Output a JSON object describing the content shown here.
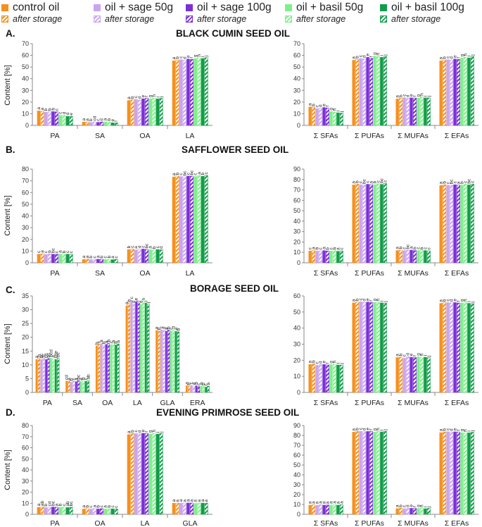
{
  "legend": {
    "items": [
      {
        "label": "control oil",
        "color": "#f5901e"
      },
      {
        "label": "oil + sage 50g",
        "color": "#c9a5f0"
      },
      {
        "label": "oil + sage 100g",
        "color": "#7b2fd6"
      },
      {
        "label": "oil + basil 50g",
        "color": "#7ef08a"
      },
      {
        "label": "oil + basil 100g",
        "color": "#129c4a"
      }
    ],
    "after_storage_label": "after storage"
  },
  "panels": [
    {
      "letter": "A.",
      "title": "BLACK CUMIN SEED OIL"
    },
    {
      "letter": "B.",
      "title": "SAFFLOWER SEED OIL"
    },
    {
      "letter": "C.",
      "title": "BORAGE SEED OIL"
    },
    {
      "letter": "D.",
      "title": "EVENING PRIMROSE SEED OIL"
    }
  ],
  "chart_data": [
    {
      "type": "bar",
      "panel": "A.",
      "title": "BLACK CUMIN SEED OIL",
      "ylabel": "Content [%]",
      "ylim": [
        0,
        70
      ],
      "yticks": [
        0,
        10,
        20,
        30,
        40,
        50,
        60,
        70
      ],
      "categories": [
        "PA",
        "SA",
        "OA",
        "LA"
      ],
      "values": [
        [
          12.6,
          12.1,
          11.5,
          11.8,
          12.0,
          11.6,
          8.8,
          8.5,
          8.0,
          7.7
        ],
        [
          3.0,
          2.9,
          2.7,
          3.0,
          2.8,
          2.9,
          3.2,
          3.0,
          2.4,
          2.2
        ],
        [
          21.5,
          22.0,
          22.5,
          21.8,
          23.0,
          23.3,
          23.0,
          23.5,
          22.9,
          23.2
        ],
        [
          55.5,
          56.0,
          56.5,
          55.8,
          57.0,
          56.5,
          57.5,
          58.0,
          57.5,
          58.0
        ]
      ],
      "letters": [
        [
          "a",
          "a",
          "b",
          "b",
          "b",
          "c",
          "c",
          "d",
          "d",
          "e"
        ],
        [
          "a",
          "a",
          "b",
          "cd",
          "c",
          "d",
          "a",
          "b",
          "e",
          "f"
        ],
        [
          "a",
          "b",
          "c",
          "d",
          "e",
          "f",
          "g",
          "h",
          "i",
          "j"
        ],
        [
          "a",
          "b",
          "c",
          "d",
          "e",
          "f",
          "g",
          "h",
          "i",
          "j"
        ]
      ]
    },
    {
      "type": "bar",
      "panel": "A.",
      "ylim": [
        0,
        70
      ],
      "yticks": [
        0,
        10,
        20,
        30,
        40,
        50,
        60,
        70
      ],
      "categories": [
        "Σ SFAs",
        "Σ PUFAs",
        "Σ MUFAs",
        "Σ EFAs"
      ],
      "values": [
        [
          16.0,
          15.5,
          14.5,
          14.8,
          15.5,
          15.0,
          12.0,
          11.5,
          11.0,
          10.5
        ],
        [
          56.0,
          56.5,
          57.5,
          57.0,
          58.5,
          57.5,
          59.5,
          59.0,
          58.5,
          59.0
        ],
        [
          22.8,
          23.2,
          24.0,
          23.0,
          23.8,
          23.5,
          23.5,
          24.5,
          23.8,
          23.6
        ],
        [
          55.5,
          56.0,
          56.5,
          56.0,
          57.0,
          56.5,
          58.0,
          58.5,
          58.0,
          59.0
        ]
      ],
      "letters": [
        [
          "a",
          "b",
          "c",
          "d",
          "e",
          "f",
          "g",
          "h",
          "i",
          "j"
        ],
        [
          "a",
          "b",
          "c",
          "d",
          "e",
          "f",
          "g",
          "h",
          "i",
          "j"
        ],
        [
          "a",
          "b",
          "c",
          "d",
          "e",
          "f",
          "g",
          "h",
          "i",
          "j"
        ],
        [
          "a",
          "b",
          "c",
          "d",
          "e",
          "f",
          "g",
          "h",
          "i",
          "j"
        ]
      ]
    },
    {
      "type": "bar",
      "panel": "B.",
      "title": "SAFFLOWER SEED OIL",
      "ylabel": "Content [%]",
      "ylim": [
        0,
        80
      ],
      "yticks": [
        0,
        10,
        20,
        30,
        40,
        50,
        60,
        70,
        80
      ],
      "categories": [
        "PA",
        "SA",
        "OA",
        "LA"
      ],
      "values": [
        [
          7.5,
          7.6,
          7.4,
          7.7,
          7.5,
          7.3,
          7.6,
          7.4,
          7.5,
          7.2
        ],
        [
          3.0,
          3.1,
          2.9,
          3.0,
          3.2,
          2.9,
          3.0,
          3.1,
          2.8,
          3.0
        ],
        [
          11.5,
          11.8,
          11.2,
          11.6,
          11.9,
          11.4,
          11.3,
          11.0,
          11.5,
          11.1
        ],
        [
          73.5,
          74.0,
          73.8,
          73.5,
          74.2,
          74.0,
          73.8,
          74.5,
          74.0,
          74.6
        ]
      ],
      "letters": [
        [
          "c",
          "a",
          "c",
          "b",
          "bc",
          "c",
          "a",
          "b",
          "c",
          "c"
        ],
        [
          "a",
          "a",
          "b",
          "c",
          "a",
          "b",
          "c",
          "b",
          "a",
          "c"
        ],
        [
          "b",
          "c",
          "a",
          "d",
          "c",
          "bc",
          "a",
          "b",
          "c",
          "d"
        ],
        [
          "a",
          "b",
          "c",
          "bc",
          "c",
          "bc",
          "c",
          "a",
          "b",
          "c"
        ]
      ]
    },
    {
      "type": "bar",
      "panel": "B.",
      "ylim": [
        0,
        90
      ],
      "yticks": [
        0,
        10,
        20,
        30,
        40,
        50,
        60,
        70,
        80,
        90
      ],
      "categories": [
        "Σ SFAs",
        "Σ PUFAs",
        "Σ MUFAs",
        "Σ EFAs"
      ],
      "values": [
        [
          11.5,
          11.8,
          11.6,
          11.4,
          11.9,
          11.3,
          11.5,
          11.7,
          11.2,
          11.4
        ],
        [
          75.0,
          75.5,
          75.2,
          74.8,
          75.6,
          75.0,
          75.3,
          76.0,
          75.5,
          76.2
        ],
        [
          12.0,
          12.3,
          11.9,
          12.1,
          12.4,
          11.8,
          12.0,
          11.7,
          11.9,
          11.5
        ],
        [
          74.5,
          75.0,
          74.8,
          74.5,
          75.2,
          74.6,
          74.9,
          75.5,
          75.0,
          75.6
        ]
      ],
      "letters": [
        [
          "c",
          "a",
          "b",
          "c",
          "a",
          "b",
          "c",
          "b",
          "a",
          "c"
        ],
        [
          "a",
          "b",
          "c",
          "bc",
          "c",
          "a",
          "b",
          "c",
          "bc",
          "c"
        ],
        [
          "a",
          "b",
          "c",
          "bc",
          "a",
          "b",
          "c",
          "b",
          "c",
          "c"
        ],
        [
          "a",
          "b",
          "c",
          "bc",
          "c",
          "a",
          "b",
          "c",
          "bc",
          "c"
        ]
      ]
    },
    {
      "type": "bar",
      "panel": "C.",
      "title": "BORAGE SEED OIL",
      "ylabel": "Content [%]",
      "ylim": [
        0,
        35
      ],
      "yticks": [
        0,
        5,
        10,
        15,
        20,
        25,
        30,
        35
      ],
      "categories": [
        "PA",
        "SA",
        "OA",
        "LA",
        "GLA",
        "ERA"
      ],
      "values": [
        [
          12.0,
          12.5,
          12.0,
          12.4,
          12.0,
          12.3,
          12.5,
          12.2,
          12.0,
          12.4
        ],
        [
          4.2,
          4.0,
          3.8,
          4.1,
          4.0,
          4.3,
          4.0,
          4.2,
          4.1,
          4.3
        ],
        [
          17.0,
          17.5,
          17.8,
          17.2,
          17.5,
          17.9,
          17.4,
          17.7,
          17.3,
          17.6
        ],
        [
          31.5,
          32.5,
          33.5,
          32.0,
          33.0,
          32.5,
          32.0,
          33.0,
          32.5,
          32.0
        ],
        [
          22.5,
          22.2,
          22.8,
          22.5,
          22.3,
          22.6,
          22.4,
          22.7,
          22.2,
          22.0
        ],
        [
          2.5,
          2.2,
          2.6,
          2.3,
          2.5,
          2.1,
          2.4,
          2.2,
          2.0,
          2.3
        ]
      ],
      "letters": [
        [
          "a",
          "b",
          "bc",
          "b",
          "cd",
          "bc",
          "bcd",
          "a",
          "cde",
          "bc"
        ],
        [
          "cd",
          "a",
          "b",
          "c",
          "a",
          "bc",
          "a",
          "b",
          "c",
          "ab"
        ],
        [
          "b",
          "c",
          "a",
          "b",
          "a",
          "b",
          "c",
          "a",
          "b",
          "a"
        ],
        [
          "a",
          "b",
          "c",
          "d",
          "e",
          "f",
          "g",
          "h",
          "i",
          "j"
        ],
        [
          "a",
          "b",
          "c",
          "d",
          "a",
          "b",
          "c",
          "d",
          "a",
          "b"
        ],
        [
          "a",
          "b",
          "c",
          "a",
          "b",
          "c",
          "a",
          "b",
          "c",
          "a"
        ]
      ]
    },
    {
      "type": "bar",
      "panel": "C.",
      "ylim": [
        0,
        60
      ],
      "yticks": [
        0,
        10,
        20,
        30,
        40,
        50,
        60
      ],
      "categories": [
        "Σ SFAs",
        "Σ PUFAs",
        "Σ MUFAs",
        "Σ EFAs"
      ],
      "values": [
        [
          17.5,
          17.8,
          17.0,
          17.3,
          17.5,
          17.1,
          17.4,
          17.6,
          17.2,
          17.0
        ],
        [
          55.8,
          56.2,
          56.5,
          56.0,
          56.3,
          55.9,
          56.1,
          56.0,
          55.8,
          55.5
        ],
        [
          21.8,
          22.0,
          21.5,
          22.3,
          22.0,
          21.7,
          22.2,
          21.9,
          22.0,
          21.6
        ],
        [
          55.5,
          55.8,
          56.0,
          55.7,
          56.0,
          55.6,
          55.8,
          55.9,
          55.5,
          55.2
        ]
      ],
      "letters": [
        [
          "a",
          "b",
          "c",
          "d",
          "e",
          "f",
          "g",
          "h",
          "i",
          "j"
        ],
        [
          "a",
          "b",
          "c",
          "d",
          "e",
          "f",
          "g",
          "h",
          "i",
          "j"
        ],
        [
          "a",
          "b",
          "c",
          "d",
          "e",
          "f",
          "g",
          "h",
          "i",
          "j"
        ],
        [
          "a",
          "b",
          "c",
          "d",
          "e",
          "f",
          "g",
          "h",
          "i",
          "j"
        ]
      ]
    },
    {
      "type": "bar",
      "panel": "D.",
      "title": "EVENING PRIMROSE SEED OIL",
      "ylabel": "Content [%]",
      "ylim": [
        0,
        80
      ],
      "yticks": [
        0,
        10,
        20,
        30,
        40,
        50,
        60,
        70,
        80
      ],
      "categories": [
        "PA",
        "OA",
        "LA",
        "GLA"
      ],
      "values": [
        [
          6.5,
          6.6,
          6.3,
          6.5,
          6.7,
          6.4,
          6.5,
          6.6,
          6.3,
          6.4
        ],
        [
          5.0,
          5.1,
          4.9,
          5.2,
          5.0,
          5.1,
          4.9,
          5.0,
          5.1,
          4.8
        ],
        [
          72.0,
          72.8,
          73.0,
          72.5,
          73.2,
          72.8,
          72.6,
          73.0,
          72.5,
          72.8
        ],
        [
          10.2,
          10.0,
          10.3,
          10.1,
          10.4,
          10.2,
          10.0,
          10.1,
          10.3,
          10.0
        ]
      ],
      "letters": [
        [
          "a",
          "ab",
          "b",
          "cd",
          "bc",
          "a",
          "b",
          "c",
          "ab",
          "bc"
        ],
        [
          "a",
          "b",
          "c",
          "a",
          "b",
          "c",
          "a",
          "b",
          "c",
          "c"
        ],
        [
          "a",
          "b",
          "c",
          "d",
          "e",
          "f",
          "g",
          "h",
          "i",
          "j"
        ],
        [
          "a",
          "a",
          "a",
          "a",
          "a",
          "a",
          "a",
          "a",
          "a",
          "a"
        ]
      ]
    },
    {
      "type": "bar",
      "panel": "D.",
      "ylim": [
        0,
        90
      ],
      "yticks": [
        0,
        10,
        20,
        30,
        40,
        50,
        60,
        70,
        80,
        90
      ],
      "categories": [
        "Σ SFAs",
        "Σ PUFAs",
        "Σ MUFAs",
        "Σ EFAs"
      ],
      "values": [
        [
          9.5,
          9.6,
          9.3,
          9.7,
          9.5,
          9.4,
          9.6,
          9.8,
          9.5,
          9.7
        ],
        [
          83.5,
          84.0,
          84.5,
          83.8,
          84.2,
          84.0,
          83.6,
          84.0,
          83.8,
          84.2
        ],
        [
          6.0,
          6.2,
          5.9,
          6.1,
          6.3,
          6.0,
          6.2,
          6.1,
          5.9,
          6.0
        ],
        [
          83.0,
          83.5,
          84.0,
          83.2,
          83.8,
          83.5,
          83.0,
          82.5,
          82.8,
          83.2
        ]
      ],
      "letters": [
        [
          "a",
          "a",
          "a",
          "a",
          "a",
          "a",
          "a",
          "a",
          "a",
          "a"
        ],
        [
          "a",
          "b",
          "c",
          "d",
          "e",
          "f",
          "g",
          "h",
          "i",
          "j"
        ],
        [
          "a",
          "b",
          "c",
          "d",
          "e",
          "f",
          "g",
          "h",
          "i",
          "j"
        ],
        [
          "a",
          "b",
          "c",
          "d",
          "e",
          "f",
          "g",
          "h",
          "i",
          "j"
        ]
      ]
    }
  ]
}
